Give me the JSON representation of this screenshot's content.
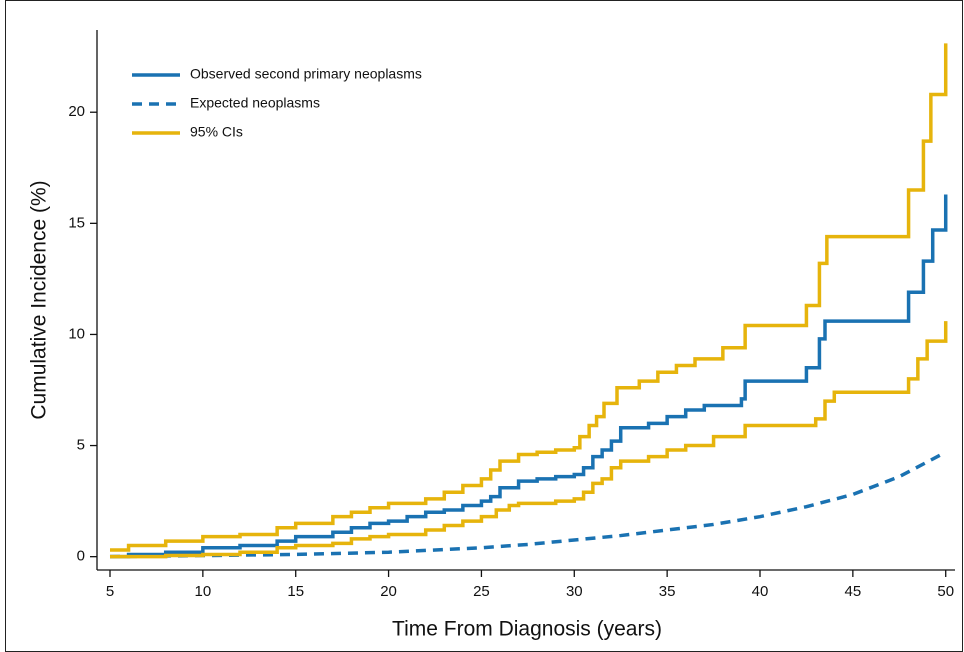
{
  "chart_data": {
    "type": "line",
    "xlabel": "Time From Diagnosis (years)",
    "ylabel": "Cumulative Incidence (%)",
    "xlim": [
      4.3,
      50.5
    ],
    "ylim": [
      -0.6,
      23.7
    ],
    "xticks": [
      5,
      10,
      15,
      20,
      25,
      30,
      35,
      40,
      45,
      50
    ],
    "yticks": [
      0,
      5,
      10,
      15,
      20
    ],
    "grid": false,
    "legend": "upper left",
    "series": [
      {
        "name": "Observed second primary neoplasms",
        "color": "#1a72b2",
        "step": true,
        "dash": false,
        "x": [
          5,
          6,
          8,
          10,
          12,
          14,
          15,
          17,
          18,
          19,
          20,
          21,
          22,
          23,
          24,
          25,
          25.5,
          26,
          27,
          28,
          29,
          30,
          30.5,
          31,
          31.5,
          32,
          32.5,
          34,
          35,
          36,
          37,
          39,
          39.2,
          42.5,
          43.2,
          43.5,
          48,
          48.8,
          49.3,
          50
        ],
        "values": [
          0,
          0.1,
          0.2,
          0.4,
          0.5,
          0.7,
          0.9,
          1.1,
          1.3,
          1.5,
          1.6,
          1.8,
          2.0,
          2.1,
          2.3,
          2.5,
          2.7,
          3.1,
          3.4,
          3.5,
          3.6,
          3.7,
          4.0,
          4.5,
          4.8,
          5.2,
          5.8,
          6.0,
          6.3,
          6.6,
          6.8,
          7.1,
          7.9,
          8.5,
          9.8,
          10.6,
          11.9,
          13.3,
          14.7,
          16.3
        ]
      },
      {
        "name": "Expected neoplasms",
        "color": "#1a72b2",
        "step": false,
        "dash": true,
        "x": [
          5,
          10,
          15,
          20,
          25,
          27.5,
          30,
          32.5,
          35,
          37.5,
          40,
          42.5,
          45,
          47.5,
          50
        ],
        "values": [
          0,
          0.05,
          0.1,
          0.2,
          0.4,
          0.55,
          0.75,
          0.95,
          1.2,
          1.45,
          1.8,
          2.25,
          2.8,
          3.6,
          4.7
        ]
      },
      {
        "name": "95% CIs",
        "color": "#e6b40c",
        "step": true,
        "dash": false,
        "x": [
          5,
          6,
          8,
          10,
          12,
          14,
          15,
          17,
          18,
          19,
          20,
          22,
          23,
          24,
          25,
          25.5,
          26,
          27,
          28,
          29,
          30,
          30.3,
          30.8,
          31.2,
          31.6,
          32.3,
          33.5,
          34.5,
          35.5,
          36.5,
          38,
          39.2,
          42.5,
          43.2,
          43.6,
          48,
          48.8,
          49.2,
          50
        ],
        "values": [
          0.3,
          0.5,
          0.7,
          0.9,
          1.0,
          1.3,
          1.5,
          1.8,
          2.0,
          2.2,
          2.4,
          2.6,
          2.9,
          3.2,
          3.5,
          3.9,
          4.3,
          4.6,
          4.7,
          4.8,
          4.9,
          5.4,
          5.9,
          6.3,
          6.9,
          7.6,
          7.9,
          8.3,
          8.6,
          8.9,
          9.4,
          10.4,
          11.3,
          13.2,
          14.4,
          16.5,
          18.7,
          20.8,
          23.1
        ]
      },
      {
        "color": "#e6b40c",
        "step": true,
        "dash": false,
        "x": [
          5,
          8,
          10,
          12,
          14,
          15,
          17,
          18,
          19,
          20,
          22,
          23,
          24,
          25,
          25.8,
          26.5,
          27,
          29,
          30,
          30.5,
          31,
          31.5,
          32,
          32.5,
          34,
          35,
          36,
          37.5,
          39.2,
          43,
          43.5,
          44,
          48,
          48.5,
          49,
          50
        ],
        "values": [
          0,
          0.05,
          0.1,
          0.2,
          0.4,
          0.5,
          0.6,
          0.8,
          0.9,
          1.0,
          1.2,
          1.4,
          1.6,
          1.8,
          2.1,
          2.3,
          2.4,
          2.5,
          2.6,
          2.9,
          3.3,
          3.5,
          4.0,
          4.3,
          4.5,
          4.8,
          5.0,
          5.4,
          5.9,
          6.2,
          7.0,
          7.4,
          8.0,
          8.9,
          9.7,
          10.6
        ]
      }
    ]
  }
}
